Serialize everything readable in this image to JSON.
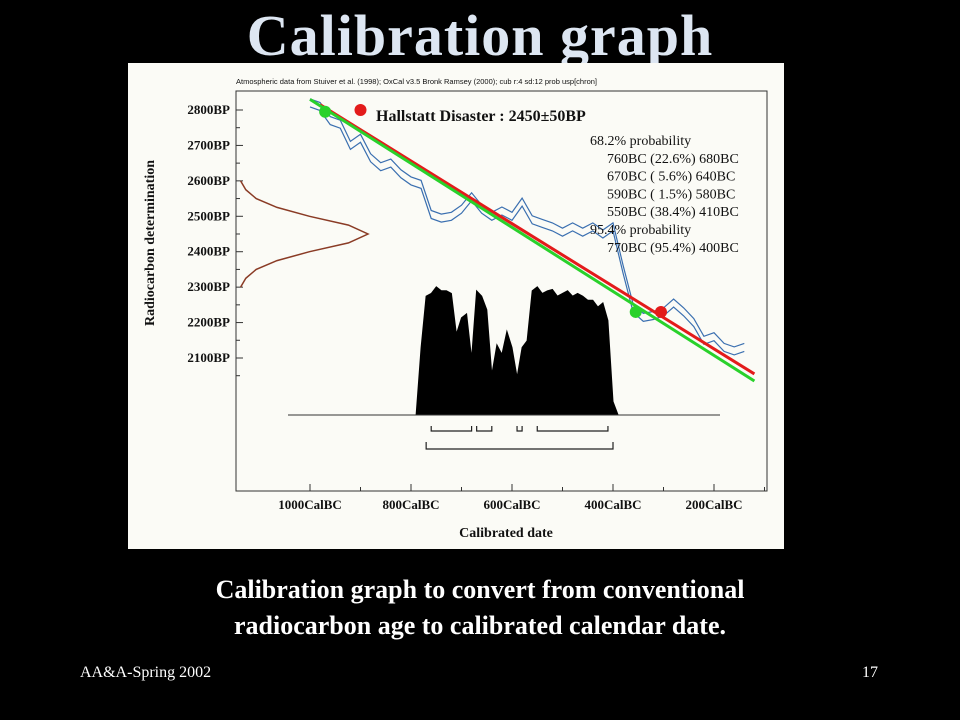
{
  "slide": {
    "title": "Calibration graph",
    "caption_line1": "Calibration graph to convert from conventional",
    "caption_line2": "radiocarbon age to calibrated calendar date.",
    "footer_left": "AA&A-Spring 2002",
    "page_number": "17"
  },
  "chart_data": {
    "type": "line",
    "header_note": "Atmospheric data from Stuiver et al. (1998); OxCal v3.5 Bronk Ramsey (2000); cub r:4 sd:12 prob usp[chron]",
    "annotation_title": "Hallstatt Disaster : 2450±50BP",
    "probability_text": [
      "68.2% probability",
      "760BC (22.6%) 680BC",
      "670BC ( 5.6%) 640BC",
      "590BC ( 1.5%) 580BC",
      "550BC (38.4%) 410BC",
      "95.4% probability",
      "770BC (95.4%) 400BC"
    ],
    "xlabel": "Calibrated date",
    "ylabel": "Radiocarbon determination",
    "x_ticks": [
      "1000CalBC",
      "800CalBC",
      "600CalBC",
      "400CalBC",
      "200CalBC"
    ],
    "y_ticks": [
      "2800BP",
      "2700BP",
      "2600BP",
      "2500BP",
      "2400BP",
      "2300BP",
      "2200BP",
      "2100BP"
    ],
    "xlim": [
      -1050,
      -20
    ],
    "ylim": [
      2020,
      2840
    ],
    "colors": {
      "curve": "#3a6fb0",
      "red_line": "#e31b1b",
      "green_line": "#29d12b",
      "distribution": "#8a3b25",
      "histogram": "#000000"
    },
    "series": [
      {
        "name": "red line",
        "x": [
          -980,
          -120
        ],
        "y": [
          2815,
          2055
        ]
      },
      {
        "name": "green line",
        "x": [
          -1000,
          -120
        ],
        "y": [
          2830,
          2035
        ]
      }
    ],
    "markers": [
      {
        "series": "red line",
        "x": [
          -900,
          -305
        ],
        "y": [
          2800,
          2230
        ]
      },
      {
        "series": "green line",
        "x": [
          -970,
          -355
        ],
        "y": [
          2795,
          2230
        ]
      }
    ],
    "calibration_curve": {
      "x": [
        -1000,
        -980,
        -960,
        -940,
        -920,
        -900,
        -880,
        -860,
        -840,
        -820,
        -800,
        -780,
        -760,
        -740,
        -720,
        -700,
        -680,
        -660,
        -640,
        -620,
        -600,
        -580,
        -560,
        -540,
        -520,
        -500,
        -480,
        -460,
        -440,
        -420,
        -400,
        -380,
        -360,
        -340,
        -320,
        -300,
        -280,
        -260,
        -240,
        -220,
        -200,
        -180,
        -160,
        -140
      ],
      "y": [
        2820,
        2810,
        2770,
        2760,
        2700,
        2720,
        2665,
        2640,
        2650,
        2620,
        2600,
        2590,
        2505,
        2495,
        2500,
        2520,
        2555,
        2520,
        2500,
        2515,
        2500,
        2540,
        2490,
        2480,
        2470,
        2455,
        2470,
        2455,
        2470,
        2450,
        2470,
        2350,
        2240,
        2215,
        2220,
        2230,
        2255,
        2230,
        2200,
        2150,
        2160,
        2130,
        2120,
        2130
      ]
    },
    "radiocarbon_distribution": {
      "y": [
        2300,
        2325,
        2350,
        2375,
        2400,
        2425,
        2450,
        2475,
        2500,
        2525,
        2550,
        2575,
        2600
      ],
      "density": [
        0.02,
        0.06,
        0.14,
        0.3,
        0.55,
        0.85,
        1.0,
        0.85,
        0.55,
        0.3,
        0.14,
        0.06,
        0.02
      ]
    },
    "calendar_distribution": {
      "x": [
        -790,
        -780,
        -770,
        -760,
        -750,
        -740,
        -730,
        -720,
        -710,
        -700,
        -690,
        -680,
        -670,
        -660,
        -650,
        -640,
        -630,
        -620,
        -610,
        -600,
        -590,
        -580,
        -570,
        -560,
        -550,
        -540,
        -530,
        -520,
        -510,
        -500,
        -490,
        -480,
        -470,
        -460,
        -450,
        -440,
        -430,
        -420,
        -410,
        -400,
        -390
      ],
      "density": [
        0,
        0.5,
        0.88,
        0.9,
        0.95,
        0.92,
        0.92,
        0.9,
        0.6,
        0.72,
        0.75,
        0.42,
        0.92,
        0.88,
        0.78,
        0.3,
        0.52,
        0.45,
        0.62,
        0.5,
        0.28,
        0.5,
        0.55,
        0.92,
        0.95,
        0.9,
        0.92,
        0.93,
        0.88,
        0.9,
        0.92,
        0.88,
        0.9,
        0.88,
        0.85,
        0.85,
        0.8,
        0.83,
        0.7,
        0.1,
        0
      ]
    },
    "ranges": {
      "one_sigma": [
        [
          -760,
          -680
        ],
        [
          -670,
          -640
        ],
        [
          -590,
          -580
        ],
        [
          -550,
          -410
        ]
      ],
      "two_sigma": [
        [
          -770,
          -400
        ]
      ]
    }
  }
}
